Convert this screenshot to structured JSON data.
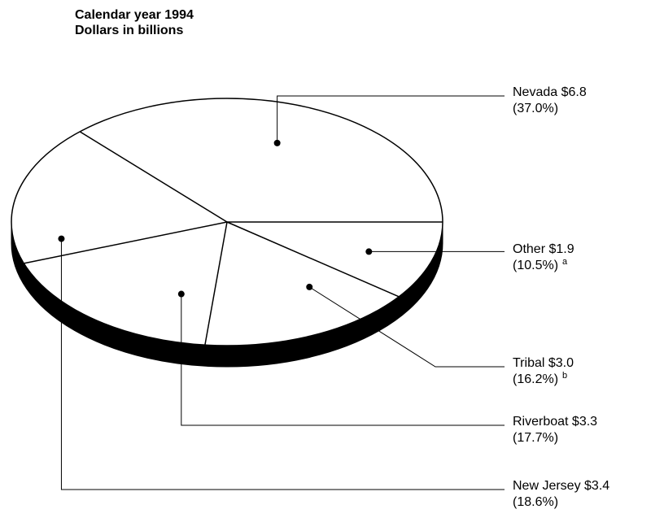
{
  "chart_data": {
    "type": "pie",
    "title": "Calendar year 1994",
    "subtitle": "Dollars in billions",
    "slices": [
      {
        "key": "nevada",
        "label": "Nevada $6.8",
        "value": 6.8,
        "percent_label": "(37.0%)",
        "note": ""
      },
      {
        "key": "other",
        "label": "Other $1.9",
        "value": 1.9,
        "percent_label": "(10.5%)",
        "note": "a"
      },
      {
        "key": "tribal",
        "label": "Tribal $3.0",
        "value": 3.0,
        "percent_label": "(16.2%)",
        "note": "b"
      },
      {
        "key": "riverboat",
        "label": "Riverboat $3.3",
        "value": 3.3,
        "percent_label": "(17.7%)",
        "note": ""
      },
      {
        "key": "new-jersey",
        "label": "New Jersey $3.4",
        "value": 3.4,
        "percent_label": "(18.6%)",
        "note": ""
      }
    ],
    "legend": "none",
    "colors": {
      "face": "#ffffff",
      "side": "#000000",
      "stroke": "#000000"
    }
  }
}
